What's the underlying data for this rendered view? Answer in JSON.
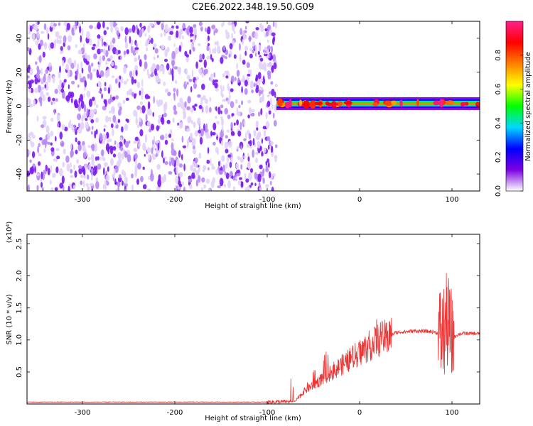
{
  "page": {
    "title": "C2E6.2022.348.19.50.G09"
  },
  "chart_data": [
    {
      "type": "heatmap",
      "xlabel": "Height of straight line (km)",
      "ylabel": "Frequency (Hz)",
      "xlim": [
        -360,
        130
      ],
      "ylim": [
        -50,
        50
      ],
      "xticks": [
        -300,
        -200,
        -100,
        0,
        100
      ],
      "yticks": [
        -40,
        -20,
        0,
        20,
        40
      ],
      "colorbar": {
        "label": "Normalized spectral amplitude",
        "range": [
          0.0,
          1.0
        ],
        "ticks": [
          0.0,
          0.2,
          0.4,
          0.6,
          0.8
        ],
        "tick_labels": [
          "0.0",
          "0.2",
          "0.4",
          "0.6",
          "0.8"
        ],
        "colors": [
          "#ffffff",
          "#7b00e0",
          "#0000ff",
          "#00d8ff",
          "#00ff00",
          "#ffff00",
          "#ff8000",
          "#ff0000",
          "#ff1f8c"
        ]
      },
      "regions": [
        {
          "desc": "noise",
          "x": [
            -360,
            -90
          ],
          "y": [
            -50,
            50
          ],
          "level": 0.1
        },
        {
          "desc": "carrier",
          "x": [
            -90,
            130
          ],
          "y": [
            0,
            3
          ],
          "level": 0.8
        }
      ],
      "grid": false
    },
    {
      "type": "line",
      "xlabel": "Height of straight line (km)",
      "ylabel": "SNR (10 * v/v)",
      "yscale_label": "(x10⁴)",
      "xlim": [
        -360,
        130
      ],
      "ylim": [
        0,
        2.65
      ],
      "xticks": [
        -300,
        -200,
        -100,
        0,
        100
      ],
      "yticks": [
        0.5,
        1.0,
        1.5,
        2.0,
        2.5
      ],
      "ytick_labels": [
        "0.5",
        "1.0",
        "1.5",
        "2.0",
        "2.5"
      ],
      "color": "#ee3333",
      "profile": {
        "x": [
          -360,
          -100,
          -70,
          -60,
          -50,
          -40,
          -30,
          -20,
          -10,
          0,
          10,
          20,
          30,
          40,
          60,
          80,
          85,
          90,
          95,
          100,
          105,
          110,
          120,
          130
        ],
        "y": [
          0.03,
          0.03,
          0.04,
          0.2,
          0.3,
          0.4,
          0.5,
          0.6,
          0.7,
          0.8,
          0.9,
          1.0,
          1.05,
          1.12,
          1.14,
          1.13,
          1.1,
          1.05,
          1.3,
          1.0,
          1.08,
          1.1,
          1.1,
          1.1
        ]
      },
      "grid": false
    }
  ]
}
